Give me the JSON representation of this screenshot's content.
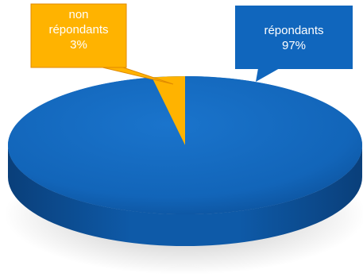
{
  "chart_data": {
    "type": "pie",
    "style": "3d",
    "slices": [
      {
        "label": "répondants",
        "value": 97,
        "value_label": "97%",
        "color": "#0F63B8"
      },
      {
        "label": "non répondants",
        "value": 3,
        "value_label": "3%",
        "color": "#FFB300"
      }
    ],
    "callouts": {
      "non_respondents": {
        "lines": [
          "non",
          "répondants",
          "3%"
        ],
        "color": "#FFB300"
      },
      "respondents": {
        "lines": [
          "répondants",
          "97%"
        ],
        "color": "#1066BD"
      }
    }
  }
}
